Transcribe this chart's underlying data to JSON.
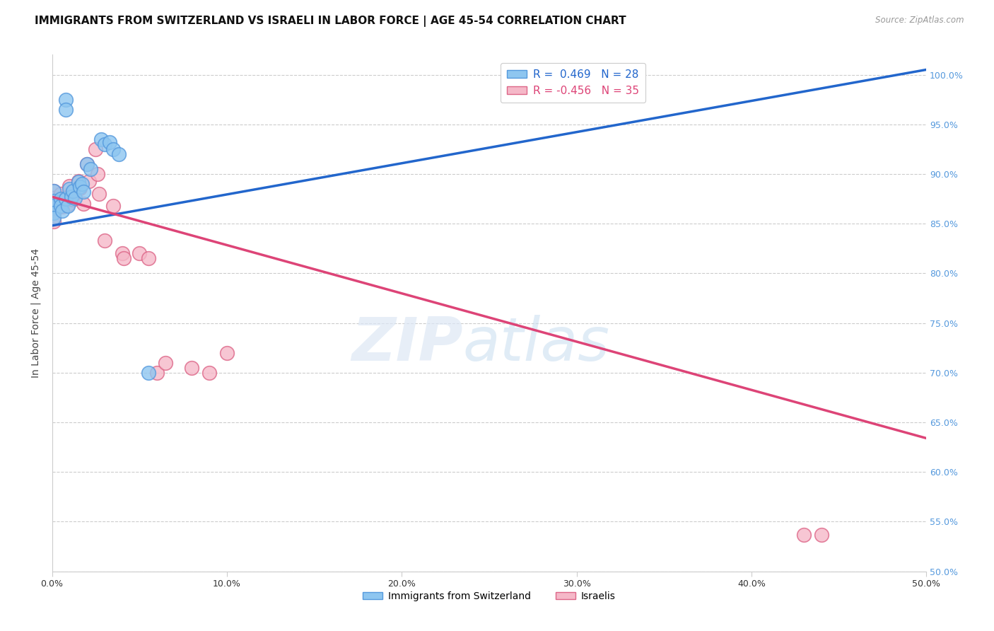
{
  "title": "IMMIGRANTS FROM SWITZERLAND VS ISRAELI IN LABOR FORCE | AGE 45-54 CORRELATION CHART",
  "source": "Source: ZipAtlas.com",
  "xlabel": "",
  "ylabel": "In Labor Force | Age 45-54",
  "xlim": [
    0.0,
    0.5
  ],
  "ylim": [
    0.5,
    1.02
  ],
  "xticks": [
    0.0,
    0.1,
    0.2,
    0.3,
    0.4,
    0.5
  ],
  "yticks": [
    0.5,
    0.55,
    0.6,
    0.65,
    0.7,
    0.75,
    0.8,
    0.85,
    0.9,
    0.95,
    1.0
  ],
  "xtick_labels": [
    "0.0%",
    "10.0%",
    "20.0%",
    "30.0%",
    "40.0%",
    "50.0%"
  ],
  "ytick_labels": [
    "50.0%",
    "55.0%",
    "60.0%",
    "65.0%",
    "70.0%",
    "75.0%",
    "80.0%",
    "85.0%",
    "90.0%",
    "95.0%",
    "100.0%"
  ],
  "swiss_x": [
    0.001,
    0.001,
    0.001,
    0.001,
    0.001,
    0.005,
    0.005,
    0.006,
    0.008,
    0.009,
    0.01,
    0.011,
    0.012,
    0.013,
    0.015,
    0.016,
    0.017,
    0.018,
    0.02,
    0.022,
    0.028,
    0.03,
    0.033,
    0.035,
    0.038,
    0.055,
    0.008,
    0.008
  ],
  "swiss_y": [
    0.883,
    0.873,
    0.868,
    0.861,
    0.856,
    0.875,
    0.868,
    0.863,
    0.875,
    0.868,
    0.885,
    0.877,
    0.883,
    0.876,
    0.892,
    0.887,
    0.89,
    0.882,
    0.91,
    0.905,
    0.935,
    0.93,
    0.932,
    0.925,
    0.92,
    0.7,
    0.975,
    0.965
  ],
  "israeli_x": [
    0.001,
    0.001,
    0.001,
    0.001,
    0.001,
    0.001,
    0.005,
    0.005,
    0.006,
    0.008,
    0.009,
    0.01,
    0.011,
    0.012,
    0.015,
    0.016,
    0.018,
    0.02,
    0.021,
    0.025,
    0.026,
    0.027,
    0.03,
    0.035,
    0.04,
    0.041,
    0.05,
    0.055,
    0.06,
    0.065,
    0.08,
    0.09,
    0.1,
    0.43,
    0.44
  ],
  "israeli_y": [
    0.883,
    0.876,
    0.87,
    0.863,
    0.858,
    0.852,
    0.88,
    0.873,
    0.867,
    0.876,
    0.869,
    0.888,
    0.88,
    0.874,
    0.893,
    0.886,
    0.87,
    0.91,
    0.893,
    0.925,
    0.9,
    0.88,
    0.833,
    0.868,
    0.82,
    0.815,
    0.82,
    0.815,
    0.7,
    0.71,
    0.705,
    0.7,
    0.72,
    0.537,
    0.537
  ],
  "swiss_color": "#8ec6f0",
  "israeli_color": "#f5b8c8",
  "swiss_edge_color": "#5599dd",
  "israeli_edge_color": "#dd6688",
  "blue_line_color": "#2266cc",
  "pink_line_color": "#dd4477",
  "blue_line_x0": 0.0,
  "blue_line_y0": 0.848,
  "blue_line_x1": 0.5,
  "blue_line_y1": 1.005,
  "pink_line_x0": 0.0,
  "pink_line_y0": 0.877,
  "pink_line_x1": 0.5,
  "pink_line_y1": 0.634,
  "R_swiss": 0.469,
  "N_swiss": 28,
  "R_israeli": -0.456,
  "N_israeli": 35,
  "legend_swiss": "Immigrants from Switzerland",
  "legend_israeli": "Israelis",
  "watermark_zip": "ZIP",
  "watermark_atlas": "atlas",
  "grid_color": "#cccccc",
  "right_ytick_color": "#5599dd",
  "title_fontsize": 11,
  "label_fontsize": 10
}
